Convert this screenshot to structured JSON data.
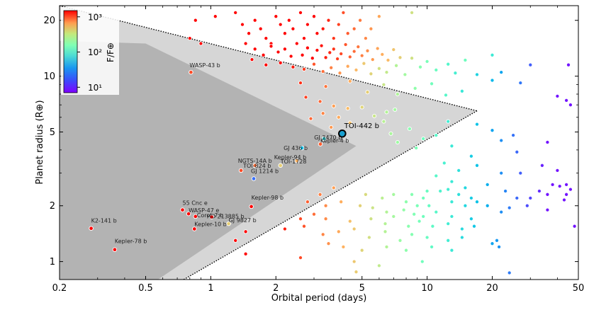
{
  "chart_data": {
    "type": "scatter",
    "title": "",
    "xlabel": "Orbital period (days)",
    "ylabel": "Planet radius (R⊕)",
    "xscale": "log",
    "yscale": "log",
    "xlim": [
      0.2,
      50
    ],
    "ylim": [
      0.8,
      24
    ],
    "xticks": [
      {
        "value": 0.2,
        "label": "0.2"
      },
      {
        "value": 0.5,
        "label": "0.5"
      },
      {
        "value": 1,
        "label": "1"
      },
      {
        "value": 2,
        "label": "2"
      },
      {
        "value": 5,
        "label": "5"
      },
      {
        "value": 10,
        "label": "10"
      },
      {
        "value": 20,
        "label": "20"
      },
      {
        "value": 50,
        "label": "50"
      }
    ],
    "yticks": [
      {
        "value": 1,
        "label": "1"
      },
      {
        "value": 2,
        "label": "2"
      },
      {
        "value": 5,
        "label": "5"
      },
      {
        "value": 10,
        "label": "10"
      },
      {
        "value": 20,
        "label": "20"
      }
    ],
    "colorbar": {
      "label": "F/F⊕",
      "scale": "log",
      "range": [
        7,
        1500
      ],
      "ticks": [
        {
          "value": 1000,
          "label": "10³"
        },
        {
          "value": 100,
          "label": "10²"
        },
        {
          "value": 10,
          "label": "10¹"
        }
      ],
      "colormap": "rainbow",
      "placement": "top-left"
    },
    "desert_regions": [
      {
        "name": "outer-desert",
        "color": "#d6d6d6",
        "polygon": [
          [
            0.2,
            24
          ],
          [
            17,
            6.5
          ],
          [
            0.75,
            0.8
          ],
          [
            0.2,
            0.8
          ]
        ]
      },
      {
        "name": "inner-desert",
        "color": "#b3b3b3",
        "polygon": [
          [
            0.2,
            15.5
          ],
          [
            0.5,
            15
          ],
          [
            4.7,
            4.2
          ],
          [
            0.57,
            0.8
          ],
          [
            0.2,
            0.8
          ]
        ]
      }
    ],
    "boundary_lines": [
      {
        "name": "upper-boundary",
        "style": "dotted",
        "points": [
          [
            0.2,
            24
          ],
          [
            17,
            6.5
          ]
        ]
      },
      {
        "name": "lower-boundary",
        "style": "dotted",
        "points": [
          [
            17,
            6.5
          ],
          [
            0.75,
            0.8
          ]
        ]
      }
    ],
    "highlight": {
      "name": "TOI-442 b",
      "period": 4.05,
      "radius": 4.9,
      "color": "#1aa0d0"
    },
    "named_planets": [
      {
        "name": "WASP-43 b",
        "period": 0.81,
        "radius": 10.5,
        "flux": 900
      },
      {
        "name": "GJ 3470 b",
        "period": 3.34,
        "radius": 4.6,
        "flux": 40
      },
      {
        "name": "GJ 436 b",
        "period": 2.64,
        "radius": 4.1,
        "flux": 30
      },
      {
        "name": "Kepler-4 b",
        "period": 3.21,
        "radius": 4.3,
        "flux": 800
      },
      {
        "name": "Kepler-94 b",
        "period": 2.5,
        "radius": 3.5,
        "flux": 400
      },
      {
        "name": "TOI-1728",
        "period": 2.1,
        "radius": 3.3,
        "flux": 300
      },
      {
        "name": "NGTS-14A b",
        "period": 1.6,
        "radius": 3.3,
        "flux": 700
      },
      {
        "name": "TOI-824 b",
        "period": 1.38,
        "radius": 3.1,
        "flux": 900
      },
      {
        "name": "GJ 1214 b",
        "period": 1.58,
        "radius": 2.8,
        "flux": 15
      },
      {
        "name": "Kepler-98 b",
        "period": 1.54,
        "radius": 1.98,
        "flux": 1500
      },
      {
        "name": "55 Cnc e",
        "period": 0.74,
        "radius": 1.9,
        "flux": 2500
      },
      {
        "name": "WASP-47 e",
        "period": 0.79,
        "radius": 1.81,
        "flux": 1500
      },
      {
        "name": "Corot-7 b",
        "period": 0.85,
        "radius": 1.75,
        "flux": 1500
      },
      {
        "name": "HD 213885 b",
        "period": 1.01,
        "radius": 1.74,
        "flux": 1500
      },
      {
        "name": "Kepler-10 b",
        "period": 0.84,
        "radius": 1.5,
        "flux": 3000
      },
      {
        "name": "GJ 9827 b",
        "period": 1.21,
        "radius": 1.6,
        "flux": 300
      },
      {
        "name": "K2-141 b",
        "period": 0.28,
        "radius": 1.51,
        "flux": 5000
      },
      {
        "name": "Kepler-78 b",
        "period": 0.36,
        "radius": 1.16,
        "flux": 3500
      }
    ],
    "points": [
      [
        0.85,
        20
      ],
      [
        0.8,
        16
      ],
      [
        0.9,
        15
      ],
      [
        1.05,
        21
      ],
      [
        1.3,
        22
      ],
      [
        1.4,
        19
      ],
      [
        1.5,
        17
      ],
      [
        1.6,
        20
      ],
      [
        1.7,
        18
      ],
      [
        1.8,
        16
      ],
      [
        1.9,
        15
      ],
      [
        2.0,
        21
      ],
      [
        2.1,
        19
      ],
      [
        2.2,
        17
      ],
      [
        2.3,
        20
      ],
      [
        2.4,
        18
      ],
      [
        2.6,
        22
      ],
      [
        2.7,
        16
      ],
      [
        2.8,
        19
      ],
      [
        3.0,
        21
      ],
      [
        3.1,
        17
      ],
      [
        3.3,
        18
      ],
      [
        3.5,
        20
      ],
      [
        3.7,
        16
      ],
      [
        3.9,
        19
      ],
      [
        4.1,
        22
      ],
      [
        4.3,
        17
      ],
      [
        4.6,
        18
      ],
      [
        4.9,
        20
      ],
      [
        5.2,
        16
      ],
      [
        5.5,
        18
      ],
      [
        6.0,
        21
      ],
      [
        8.5,
        22
      ],
      [
        1.45,
        15
      ],
      [
        1.6,
        14
      ],
      [
        1.75,
        13
      ],
      [
        1.9,
        14.5
      ],
      [
        2.05,
        13.5
      ],
      [
        2.2,
        14
      ],
      [
        2.35,
        12.8
      ],
      [
        2.5,
        15
      ],
      [
        2.65,
        13
      ],
      [
        2.8,
        14.2
      ],
      [
        2.95,
        12.5
      ],
      [
        3.1,
        13.8
      ],
      [
        3.25,
        14.6
      ],
      [
        3.4,
        12.6
      ],
      [
        3.55,
        13.4
      ],
      [
        3.7,
        14
      ],
      [
        3.85,
        12.4
      ],
      [
        4.0,
        13.2
      ],
      [
        4.2,
        14.8
      ],
      [
        4.4,
        12.7
      ],
      [
        4.6,
        13.6
      ],
      [
        4.8,
        14.4
      ],
      [
        5.0,
        12.9
      ],
      [
        5.3,
        13.7
      ],
      [
        5.6,
        12.3
      ],
      [
        5.9,
        14.1
      ],
      [
        6.2,
        13.1
      ],
      [
        6.6,
        12.2
      ],
      [
        7.0,
        13.9
      ],
      [
        7.5,
        12.6
      ],
      [
        1.55,
        12.3
      ],
      [
        1.8,
        11.5
      ],
      [
        2.1,
        11.8
      ],
      [
        2.4,
        11.2
      ],
      [
        2.7,
        10.9
      ],
      [
        3.0,
        11.6
      ],
      [
        3.3,
        10.6
      ],
      [
        3.6,
        11.1
      ],
      [
        3.95,
        10.4
      ],
      [
        4.3,
        11.3
      ],
      [
        4.7,
        10.8
      ],
      [
        5.1,
        11.7
      ],
      [
        5.5,
        10.3
      ],
      [
        6.0,
        11.0
      ],
      [
        6.5,
        10.5
      ],
      [
        7.2,
        11.4
      ],
      [
        7.9,
        10.2
      ],
      [
        8.5,
        12.5
      ],
      [
        9.3,
        11.2
      ],
      [
        10.0,
        12.0
      ],
      [
        11.0,
        10.8
      ],
      [
        12.5,
        11.6
      ],
      [
        13.5,
        10.4
      ],
      [
        15.0,
        12.2
      ],
      [
        17.0,
        10.2
      ],
      [
        20.0,
        13.0
      ],
      [
        22.0,
        10.5
      ],
      [
        30.0,
        11.5
      ],
      [
        45.0,
        11.5
      ],
      [
        2.6,
        9.2
      ],
      [
        3.4,
        8.8
      ],
      [
        4.4,
        9.4
      ],
      [
        5.3,
        8.2
      ],
      [
        6.3,
        9.0
      ],
      [
        7.3,
        8.0
      ],
      [
        8.8,
        8.6
      ],
      [
        10.5,
        9.1
      ],
      [
        12.2,
        7.9
      ],
      [
        14.5,
        8.3
      ],
      [
        20.0,
        9.5
      ],
      [
        27.0,
        9.2
      ],
      [
        40.0,
        7.8
      ],
      [
        44.0,
        7.4
      ],
      [
        46.0,
        7.0
      ],
      [
        2.75,
        7.7
      ],
      [
        3.2,
        7.3
      ],
      [
        3.7,
        6.9
      ],
      [
        4.3,
        6.7
      ],
      [
        5.0,
        6.8
      ],
      [
        5.7,
        6.1
      ],
      [
        6.5,
        6.4
      ],
      [
        7.1,
        6.6
      ],
      [
        2.9,
        5.9
      ],
      [
        3.3,
        6.3
      ],
      [
        3.9,
        6.0
      ],
      [
        4.4,
        5.6
      ],
      [
        3.6,
        5.3
      ],
      [
        6.3,
        5.7
      ],
      [
        12.5,
        5.7
      ],
      [
        17.0,
        5.5
      ],
      [
        20.0,
        5.1
      ],
      [
        25.0,
        4.8
      ],
      [
        6.8,
        4.9
      ],
      [
        7.3,
        4.4
      ],
      [
        8.3,
        5.2
      ],
      [
        8.9,
        4.1
      ],
      [
        9.6,
        4.6
      ],
      [
        11.0,
        4.8
      ],
      [
        13.0,
        4.2
      ],
      [
        16.0,
        3.7
      ],
      [
        22.0,
        4.5
      ],
      [
        26.0,
        3.9
      ],
      [
        36.0,
        4.4
      ],
      [
        12.0,
        3.4
      ],
      [
        14.0,
        3.1
      ],
      [
        17.0,
        3.3
      ],
      [
        22.0,
        3.0
      ],
      [
        27.0,
        3.0
      ],
      [
        34.0,
        3.3
      ],
      [
        40.0,
        3.1
      ],
      [
        11.0,
        2.9
      ],
      [
        13.0,
        2.7
      ],
      [
        15.0,
        2.5
      ],
      [
        19.0,
        2.6
      ],
      [
        23.0,
        2.4
      ],
      [
        26.0,
        2.2
      ],
      [
        30.0,
        2.2
      ],
      [
        38.0,
        2.6
      ],
      [
        41.0,
        2.55
      ],
      [
        44.0,
        2.6
      ],
      [
        46.0,
        2.45
      ],
      [
        12.5,
        2.45
      ],
      [
        14.0,
        2.3
      ],
      [
        16.0,
        2.2
      ],
      [
        33.0,
        2.4
      ],
      [
        36.0,
        2.3
      ],
      [
        44.0,
        2.3
      ],
      [
        8.5,
        2.3
      ],
      [
        9.6,
        2.2
      ],
      [
        10.0,
        2.4
      ],
      [
        11.5,
        2.4
      ],
      [
        13.0,
        2.1
      ],
      [
        15.0,
        2.0
      ],
      [
        17.0,
        2.1
      ],
      [
        19.0,
        2.0
      ],
      [
        22.0,
        1.85
      ],
      [
        24.0,
        1.95
      ],
      [
        29.0,
        2.0
      ],
      [
        36.0,
        1.9
      ],
      [
        43.0,
        2.15
      ],
      [
        3.2,
        2.3
      ],
      [
        3.7,
        2.5
      ],
      [
        5.2,
        2.3
      ],
      [
        6.2,
        2.2
      ],
      [
        7.0,
        2.3
      ],
      [
        8.0,
        2.1
      ],
      [
        9.0,
        2.0
      ],
      [
        10.2,
        2.0
      ],
      [
        2.8,
        2.1
      ],
      [
        3.4,
        2.0
      ],
      [
        4.0,
        2.1
      ],
      [
        4.9,
        2.0
      ],
      [
        5.6,
        1.95
      ],
      [
        6.5,
        1.85
      ],
      [
        7.8,
        1.9
      ],
      [
        8.7,
        1.8
      ],
      [
        9.6,
        1.75
      ],
      [
        11.0,
        1.85
      ],
      [
        13.0,
        1.75
      ],
      [
        16.0,
        1.7
      ],
      [
        2.6,
        1.7
      ],
      [
        3.0,
        1.8
      ],
      [
        3.4,
        1.7
      ],
      [
        4.4,
        1.65
      ],
      [
        5.5,
        1.7
      ],
      [
        6.4,
        1.6
      ],
      [
        7.0,
        1.75
      ],
      [
        8.2,
        1.55
      ],
      [
        9.2,
        1.65
      ],
      [
        10.6,
        1.55
      ],
      [
        12.5,
        1.6
      ],
      [
        14.5,
        1.5
      ],
      [
        16.5,
        1.55
      ],
      [
        48.0,
        1.55
      ],
      [
        2.2,
        1.5
      ],
      [
        2.7,
        1.55
      ],
      [
        3.3,
        1.4
      ],
      [
        3.9,
        1.45
      ],
      [
        4.6,
        1.5
      ],
      [
        5.4,
        1.35
      ],
      [
        6.4,
        1.45
      ],
      [
        7.5,
        1.3
      ],
      [
        8.5,
        1.4
      ],
      [
        10.0,
        1.35
      ],
      [
        12.5,
        1.3
      ],
      [
        14.5,
        1.35
      ],
      [
        21.0,
        1.3
      ],
      [
        3.5,
        1.25
      ],
      [
        4.1,
        1.2
      ],
      [
        5.0,
        1.15
      ],
      [
        6.5,
        1.2
      ],
      [
        8.0,
        1.15
      ],
      [
        10.5,
        1.2
      ],
      [
        13.0,
        1.15
      ],
      [
        20.0,
        1.25
      ],
      [
        21.5,
        1.2
      ],
      [
        1.45,
        1.1
      ],
      [
        2.6,
        1.05
      ],
      [
        4.6,
        1.0
      ],
      [
        6.0,
        0.95
      ],
      [
        9.5,
        1.0
      ],
      [
        24.0,
        0.87
      ],
      [
        4.7,
        0.88
      ],
      [
        1.3,
        1.3
      ],
      [
        1.45,
        1.45
      ]
    ]
  }
}
